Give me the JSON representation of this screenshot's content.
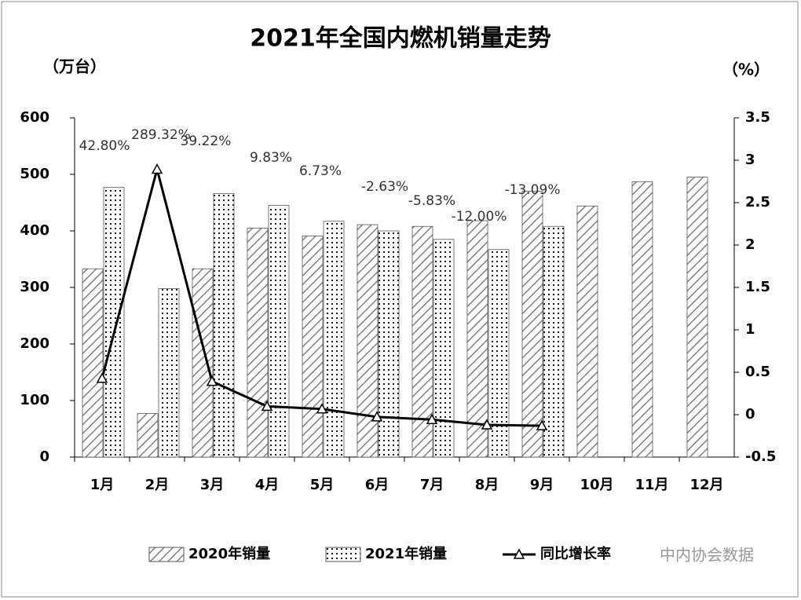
{
  "chart_data": {
    "type": "bar",
    "title": "2021年全国内燃机销量走势",
    "y_label": "（万台）",
    "y2_label": "（%）",
    "categories": [
      "1月",
      "2月",
      "3月",
      "4月",
      "5月",
      "6月",
      "7月",
      "8月",
      "9月",
      "10月",
      "11月",
      "12月"
    ],
    "series": [
      {
        "name": "2020年销量",
        "type": "bar",
        "color": "#808080",
        "values": [
          333,
          77,
          333,
          405,
          391,
          411,
          408,
          418,
          470,
          444,
          487,
          495
        ]
      },
      {
        "name": "2021年销量",
        "type": "bar",
        "color": "#000000",
        "values": [
          477,
          298,
          466,
          445,
          417,
          400,
          385,
          367,
          408,
          null,
          null,
          null
        ]
      },
      {
        "name": "同比增长率",
        "type": "line",
        "axis": "y2",
        "color": "#000000",
        "values": [
          0.428,
          2.8932,
          0.3922,
          0.0983,
          0.0673,
          -0.0263,
          -0.0583,
          -0.12,
          -0.1309,
          null,
          null,
          null
        ],
        "value_labels": [
          "42.80%",
          "289.32%",
          "39.22%",
          "9.83%",
          "6.73%",
          "-2.63%",
          "-5.83%",
          "-12.00%",
          "-13.09%",
          null,
          null,
          null
        ]
      }
    ],
    "ylim": [
      0,
      600
    ],
    "yticks": [
      0,
      100,
      200,
      300,
      400,
      500,
      600
    ],
    "y2lim": [
      -0.5,
      3.5
    ],
    "y2ticks": [
      -0.5,
      0,
      0.5,
      1,
      1.5,
      2,
      2.5,
      3,
      3.5
    ],
    "watermark": "中内协会数据"
  }
}
